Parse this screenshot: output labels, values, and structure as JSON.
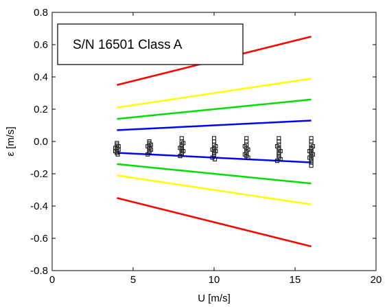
{
  "chart_data": {
    "type": "scatter",
    "xlabel": "U [m/s]",
    "ylabel": "ε [m/s]",
    "xlim": [
      0,
      20
    ],
    "ylim": [
      -0.8,
      0.8
    ],
    "x_ticks": [
      "0",
      "5",
      "10",
      "15",
      "20"
    ],
    "y_ticks": [
      "0.8",
      "0.6",
      "0.4",
      "0.2",
      "0.0",
      "-0.2",
      "-0.4",
      "-0.6",
      "-0.8"
    ],
    "annotation": "S/N 16501 Class A",
    "grid": false,
    "lines": [
      {
        "color": "#ff0000",
        "x": [
          4,
          16
        ],
        "y": [
          0.35,
          0.65
        ]
      },
      {
        "color": "#ffff00",
        "x": [
          4,
          16
        ],
        "y": [
          0.21,
          0.39
        ]
      },
      {
        "color": "#00dd00",
        "x": [
          4,
          16
        ],
        "y": [
          0.14,
          0.26
        ]
      },
      {
        "color": "#0000ff",
        "x": [
          4,
          16
        ],
        "y": [
          0.07,
          0.13
        ]
      },
      {
        "color": "#0000ff",
        "x": [
          4,
          16
        ],
        "y": [
          -0.07,
          -0.13
        ]
      },
      {
        "color": "#00dd00",
        "x": [
          4,
          16
        ],
        "y": [
          -0.14,
          -0.26
        ]
      },
      {
        "color": "#ffff00",
        "x": [
          4,
          16
        ],
        "y": [
          -0.21,
          -0.39
        ]
      },
      {
        "color": "#ff0000",
        "x": [
          4,
          16
        ],
        "y": [
          -0.35,
          -0.65
        ]
      }
    ],
    "points": [
      [
        4,
        -0.01
      ],
      [
        4,
        -0.02
      ],
      [
        4,
        -0.03
      ],
      [
        4,
        -0.04
      ],
      [
        4,
        -0.05
      ],
      [
        4,
        -0.06
      ],
      [
        4,
        -0.07
      ],
      [
        4.1,
        -0.03
      ],
      [
        4.1,
        -0.05
      ],
      [
        3.9,
        -0.04
      ],
      [
        3.9,
        -0.06
      ],
      [
        4.05,
        -0.08
      ],
      [
        6,
        0.0
      ],
      [
        6,
        -0.01
      ],
      [
        6,
        -0.02
      ],
      [
        6,
        -0.03
      ],
      [
        6,
        -0.04
      ],
      [
        6,
        -0.05
      ],
      [
        6,
        -0.06
      ],
      [
        6,
        -0.07
      ],
      [
        6.1,
        -0.02
      ],
      [
        6.1,
        -0.05
      ],
      [
        5.9,
        -0.03
      ],
      [
        5.9,
        -0.08
      ],
      [
        8,
        0.02
      ],
      [
        8,
        0.0
      ],
      [
        8,
        -0.02
      ],
      [
        8,
        -0.03
      ],
      [
        8,
        -0.04
      ],
      [
        8,
        -0.05
      ],
      [
        8,
        -0.06
      ],
      [
        8,
        -0.07
      ],
      [
        8,
        -0.08
      ],
      [
        8.1,
        -0.01
      ],
      [
        8.1,
        -0.06
      ],
      [
        7.9,
        -0.04
      ],
      [
        7.9,
        -0.09
      ],
      [
        10,
        0.02
      ],
      [
        10,
        0.0
      ],
      [
        10,
        -0.02
      ],
      [
        10,
        -0.04
      ],
      [
        10,
        -0.05
      ],
      [
        10,
        -0.06
      ],
      [
        10,
        -0.07
      ],
      [
        10,
        -0.08
      ],
      [
        10,
        -0.09
      ],
      [
        10.1,
        -0.03
      ],
      [
        10.1,
        -0.06
      ],
      [
        9.9,
        -0.05
      ],
      [
        9.9,
        -0.1
      ],
      [
        10.05,
        -0.11
      ],
      [
        12,
        0.02
      ],
      [
        12,
        0.0
      ],
      [
        12,
        -0.02
      ],
      [
        12,
        -0.04
      ],
      [
        12,
        -0.06
      ],
      [
        12,
        -0.07
      ],
      [
        12,
        -0.08
      ],
      [
        12,
        -0.09
      ],
      [
        12.1,
        -0.05
      ],
      [
        12.1,
        -0.1
      ],
      [
        11.9,
        -0.03
      ],
      [
        11.9,
        -0.08
      ],
      [
        14,
        0.02
      ],
      [
        14,
        0.0
      ],
      [
        14,
        -0.02
      ],
      [
        14,
        -0.04
      ],
      [
        14,
        -0.05
      ],
      [
        14,
        -0.07
      ],
      [
        14,
        -0.08
      ],
      [
        14,
        -0.09
      ],
      [
        14,
        -0.1
      ],
      [
        14.1,
        -0.06
      ],
      [
        14.1,
        -0.11
      ],
      [
        13.9,
        -0.03
      ],
      [
        13.9,
        -0.12
      ],
      [
        16,
        0.02
      ],
      [
        16,
        0.0
      ],
      [
        16,
        -0.02
      ],
      [
        16,
        -0.04
      ],
      [
        16,
        -0.05
      ],
      [
        16,
        -0.06
      ],
      [
        16,
        -0.07
      ],
      [
        16,
        -0.08
      ],
      [
        16,
        -0.09
      ],
      [
        16,
        -0.1
      ],
      [
        16,
        -0.11
      ],
      [
        16,
        -0.12
      ],
      [
        16,
        -0.13
      ],
      [
        16,
        -0.15
      ],
      [
        16.1,
        -0.03
      ],
      [
        16.1,
        -0.08
      ],
      [
        15.9,
        -0.06
      ],
      [
        15.9,
        -0.1
      ]
    ]
  }
}
